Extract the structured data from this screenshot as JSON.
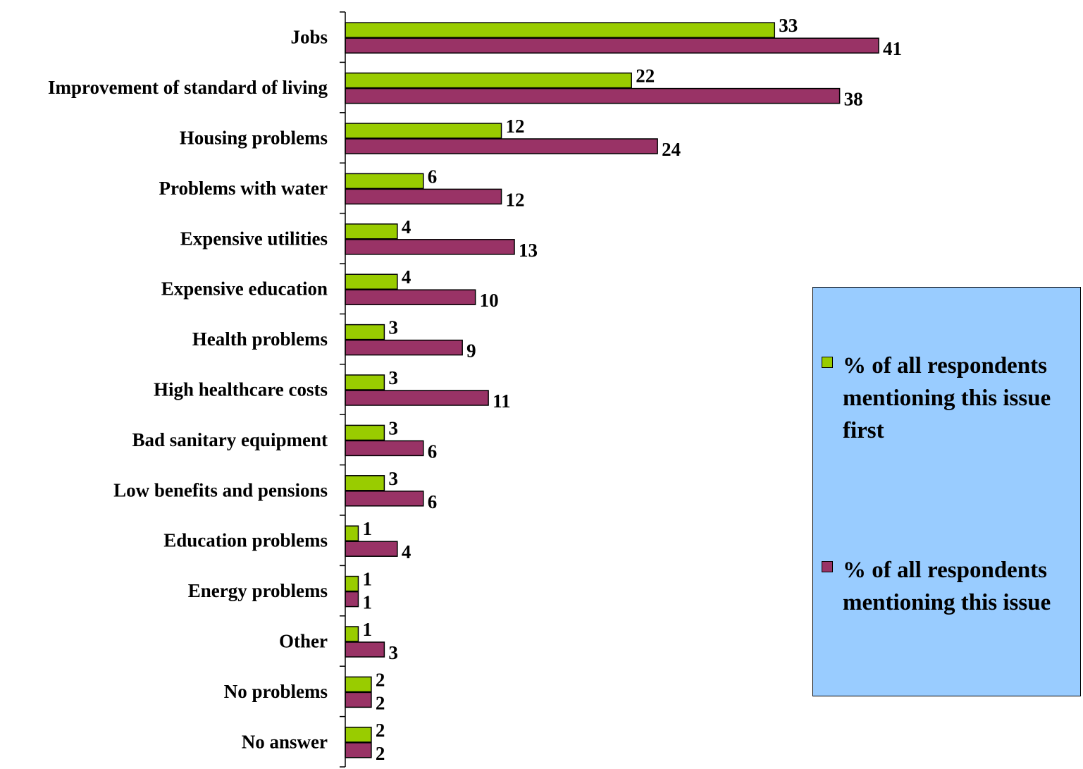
{
  "chart_data": {
    "type": "bar",
    "orientation": "horizontal",
    "categories": [
      "Jobs",
      "Improvement of standard of living",
      "Housing problems",
      "Problems with water",
      "Expensive utilities",
      "Expensive education",
      "Health problems",
      "High healthcare costs",
      "Bad sanitary equipment",
      "Low benefits and pensions",
      "Education problems",
      "Energy problems",
      "Other",
      "No problems",
      "No answer"
    ],
    "series": [
      {
        "name": "% of all respondents mentioning this issue first",
        "color": "#99cc00",
        "values": [
          33,
          22,
          12,
          6,
          4,
          4,
          3,
          3,
          3,
          3,
          1,
          1,
          1,
          2,
          2
        ]
      },
      {
        "name": "% of all respondents mentioning this issue",
        "color": "#993366",
        "values": [
          41,
          38,
          24,
          12,
          13,
          10,
          9,
          11,
          6,
          6,
          4,
          1,
          3,
          2,
          2
        ]
      }
    ],
    "xlim": [
      0,
      45
    ],
    "grid": false,
    "legend_position": "right",
    "data_labels": true
  },
  "legend": {
    "items": [
      {
        "label": "% of all respondents mentioning this issue first",
        "color": "#99cc00"
      },
      {
        "label": "% of all respondents mentioning this issue",
        "color": "#993366"
      }
    ],
    "background": "#99ccff"
  }
}
